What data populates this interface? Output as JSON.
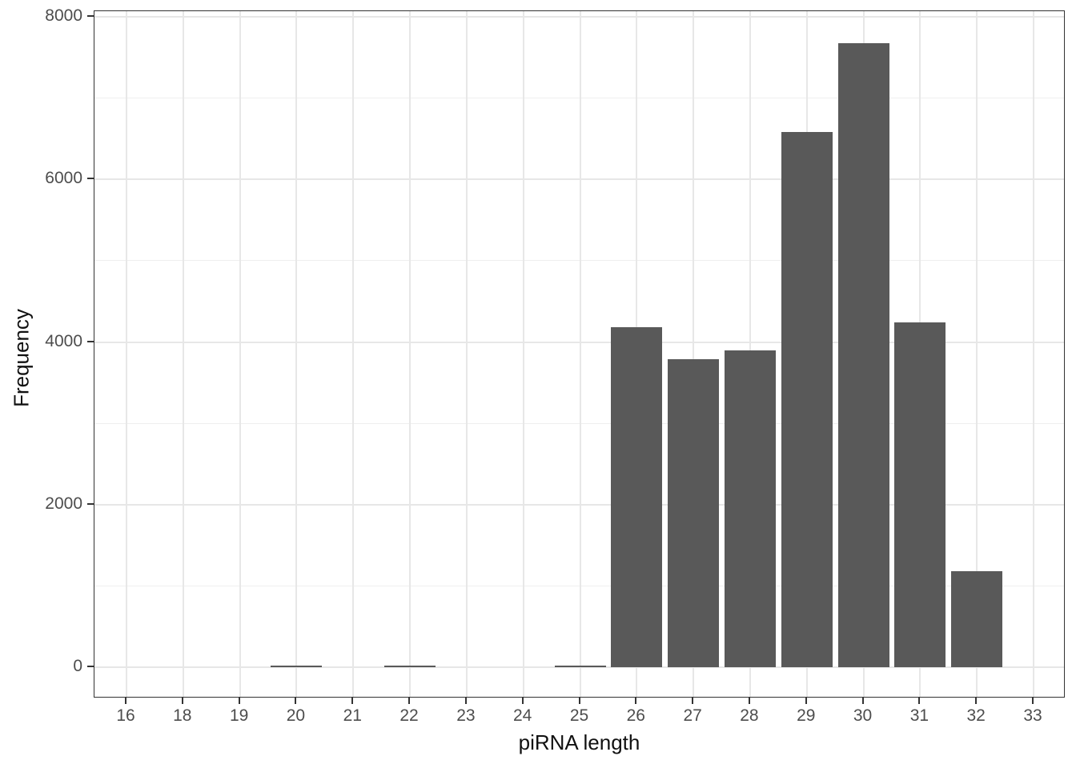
{
  "chart_data": {
    "type": "bar",
    "title": "",
    "xlabel": "piRNA length",
    "ylabel": "Frequency",
    "categories": [
      "16",
      "18",
      "19",
      "20",
      "21",
      "22",
      "23",
      "24",
      "25",
      "26",
      "27",
      "28",
      "29",
      "30",
      "31",
      "32",
      "33"
    ],
    "values": [
      2,
      2,
      2,
      25,
      2,
      25,
      2,
      2,
      25,
      4180,
      3790,
      3900,
      6580,
      7675,
      4240,
      1180,
      2
    ],
    "ylim": [
      0,
      8000
    ],
    "yticks": [
      0,
      2000,
      4000,
      6000,
      8000
    ],
    "ytick_labels": [
      "0",
      "2000",
      "4000",
      "6000",
      "8000"
    ],
    "yminor": [
      1000,
      3000,
      5000,
      7000
    ],
    "legend": "none",
    "grid": "horizontal major+minor, vertical major per category",
    "bar_color": "#595959",
    "colors": {
      "background": "#ffffff",
      "panel_border": "#333333",
      "grid_major": "#e7e7e7",
      "grid_minor": "#efefef",
      "tick_mark": "#333333",
      "tick_label": "#4d4d4d",
      "axis_title": "#111111"
    }
  }
}
